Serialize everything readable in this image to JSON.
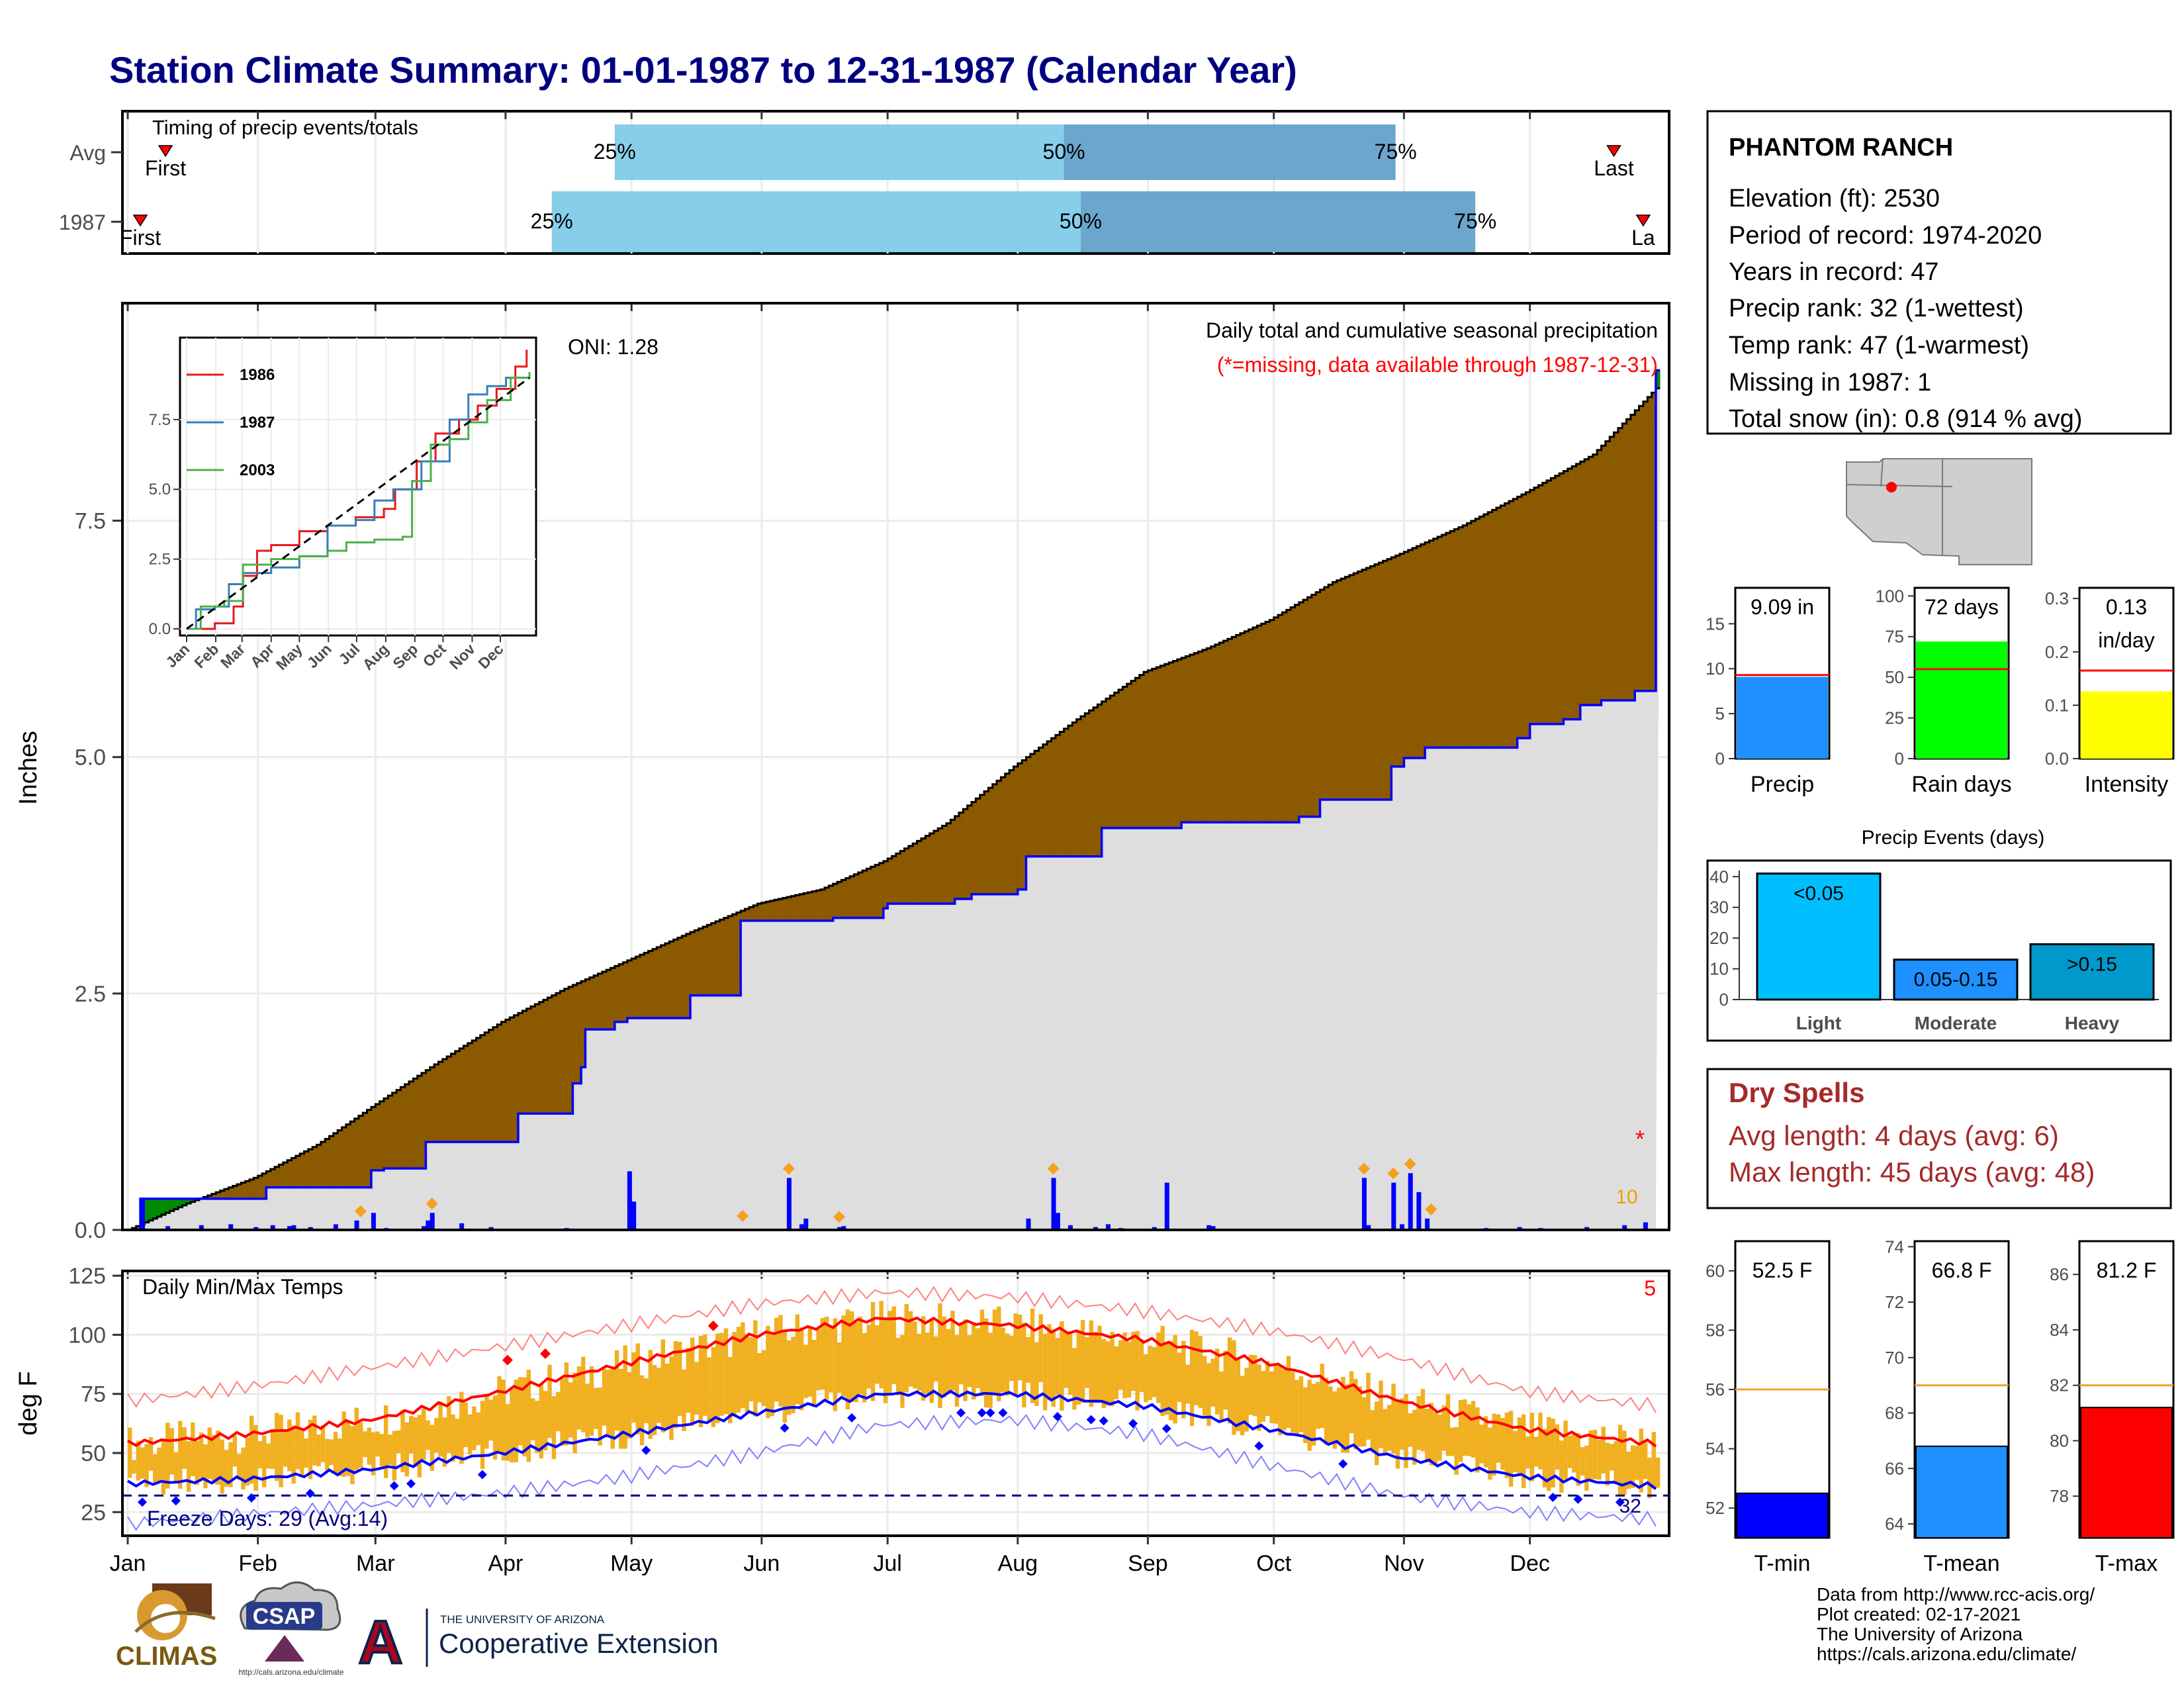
{
  "title": "Station Climate Summary: 01-01-1987 to 12-31-1987 (Calendar Year)",
  "colors": {
    "title": "#000080",
    "light_blue": "#87ceeb",
    "mid_blue": "#6ca6cd",
    "brown": "#8b5a00",
    "green": "#008b00",
    "gray_fill": "#dedede",
    "precip": "#1e90ff",
    "rain_days": "#00ff00",
    "intensity": "#ffff00",
    "tmin": "#0000ff",
    "tmean": "#1e90ff",
    "tmax": "#ff0000",
    "temp_bar": "#f0b020",
    "dry_spell": "#a52a2a"
  },
  "months": [
    "Jan",
    "Feb",
    "Mar",
    "Apr",
    "May",
    "Jun",
    "Jul",
    "Aug",
    "Sep",
    "Oct",
    "Nov",
    "Dec"
  ],
  "timing": {
    "title": "Timing of precip events/totals",
    "rows": [
      {
        "label": "Avg",
        "p25": "25%",
        "p50": "50%",
        "p75": "75%",
        "first": "First",
        "last": "Last",
        "p25_doy": 117,
        "p50_doy": 224,
        "p75_doy": 303,
        "first_doy": 10,
        "last_doy": 355
      },
      {
        "label": "1987",
        "p25": "25%",
        "p50": "50%",
        "p75": "75%",
        "first": "First",
        "last": "La",
        "p25_doy": 102,
        "p50_doy": 228,
        "p75_doy": 322,
        "first_doy": 4,
        "last_doy": 362
      }
    ]
  },
  "precip": {
    "ylabel": "Inches",
    "yticks": [
      "0.0",
      "2.5",
      "5.0",
      "7.5"
    ],
    "ylim": [
      0,
      9.8
    ],
    "oni": "ONI: 1.28",
    "note1": "Daily total and cumulative seasonal precipitation",
    "note2": "(*=missing, data available through 1987-12-31)",
    "missing_marker": "*",
    "count_marker": "10",
    "avg_cumulative": [
      [
        1,
        0
      ],
      [
        15,
        0.28
      ],
      [
        31,
        0.55
      ],
      [
        46,
        0.9
      ],
      [
        59,
        1.3
      ],
      [
        74,
        1.75
      ],
      [
        90,
        2.2
      ],
      [
        105,
        2.55
      ],
      [
        120,
        2.85
      ],
      [
        135,
        3.15
      ],
      [
        151,
        3.45
      ],
      [
        166,
        3.6
      ],
      [
        181,
        3.9
      ],
      [
        196,
        4.3
      ],
      [
        212,
        4.9
      ],
      [
        227,
        5.4
      ],
      [
        243,
        5.9
      ],
      [
        258,
        6.15
      ],
      [
        273,
        6.45
      ],
      [
        288,
        6.85
      ],
      [
        304,
        7.15
      ],
      [
        319,
        7.45
      ],
      [
        334,
        7.8
      ],
      [
        350,
        8.2
      ],
      [
        365,
        8.9
      ]
    ],
    "cumulative_1987": [
      [
        1,
        0
      ],
      [
        4,
        0.33
      ],
      [
        30,
        0.33
      ],
      [
        34,
        0.45
      ],
      [
        58,
        0.45
      ],
      [
        59,
        0.63
      ],
      [
        60,
        0.63
      ],
      [
        62,
        0.65
      ],
      [
        68,
        0.65
      ],
      [
        72,
        0.93
      ],
      [
        92,
        0.93
      ],
      [
        94,
        1.23
      ],
      [
        105,
        1.23
      ],
      [
        107,
        1.55
      ],
      [
        109,
        1.72
      ],
      [
        110,
        2.12
      ],
      [
        117,
        2.2
      ],
      [
        120,
        2.24
      ],
      [
        133,
        2.24
      ],
      [
        135,
        2.48
      ],
      [
        146,
        2.48
      ],
      [
        147,
        3.27
      ],
      [
        160,
        3.27
      ],
      [
        169,
        3.3
      ],
      [
        181,
        3.4
      ],
      [
        182,
        3.45
      ],
      [
        195,
        3.45
      ],
      [
        198,
        3.5
      ],
      [
        202,
        3.55
      ],
      [
        213,
        3.6
      ],
      [
        215,
        3.95
      ],
      [
        227,
        3.95
      ],
      [
        233,
        4.25
      ],
      [
        248,
        4.25
      ],
      [
        252,
        4.31
      ],
      [
        278,
        4.31
      ],
      [
        280,
        4.37
      ],
      [
        285,
        4.55
      ],
      [
        300,
        4.55
      ],
      [
        302,
        4.9
      ],
      [
        305,
        4.99
      ],
      [
        310,
        5.1
      ],
      [
        330,
        5.1
      ],
      [
        332,
        5.2
      ],
      [
        335,
        5.35
      ],
      [
        343,
        5.4
      ],
      [
        347,
        5.55
      ],
      [
        352,
        5.6
      ],
      [
        360,
        5.7
      ],
      [
        365,
        9.09
      ]
    ],
    "daily_bars": [
      [
        4,
        0.33
      ],
      [
        10,
        0.04
      ],
      [
        18,
        0.05
      ],
      [
        25,
        0.06
      ],
      [
        31,
        0.03
      ],
      [
        35,
        0.05
      ],
      [
        39,
        0.04
      ],
      [
        40,
        0.05
      ],
      [
        44,
        0.03
      ],
      [
        50,
        0.06
      ],
      [
        55,
        0.1
      ],
      [
        59,
        0.18
      ],
      [
        62,
        0.02
      ],
      [
        71,
        0.04
      ],
      [
        72,
        0.1
      ],
      [
        73,
        0.18
      ],
      [
        80,
        0.07
      ],
      [
        87,
        0.03
      ],
      [
        105,
        0.02
      ],
      [
        120,
        0.62
      ],
      [
        121,
        0.3
      ],
      [
        158,
        0.55
      ],
      [
        161,
        0.06
      ],
      [
        162,
        0.12
      ],
      [
        170,
        0.03
      ],
      [
        171,
        0.04
      ],
      [
        215,
        0.12
      ],
      [
        221,
        0.55
      ],
      [
        222,
        0.18
      ],
      [
        225,
        0.05
      ],
      [
        231,
        0.03
      ],
      [
        234,
        0.06
      ],
      [
        237,
        0.02
      ],
      [
        245,
        0.03
      ],
      [
        248,
        0.5
      ],
      [
        258,
        0.05
      ],
      [
        259,
        0.04
      ],
      [
        295,
        0.55
      ],
      [
        296,
        0.05
      ],
      [
        302,
        0.5
      ],
      [
        304,
        0.06
      ],
      [
        306,
        0.6
      ],
      [
        308,
        0.4
      ],
      [
        310,
        0.12
      ],
      [
        324,
        0.02
      ],
      [
        332,
        0.03
      ],
      [
        337,
        0.02
      ],
      [
        348,
        0.03
      ],
      [
        357,
        0.05
      ],
      [
        362,
        0.08
      ]
    ],
    "diamonds": [
      56,
      73,
      147,
      158,
      170,
      221,
      295,
      302,
      306,
      311
    ]
  },
  "inset": {
    "legend": [
      {
        "name": "1986",
        "color": "#e41a1c"
      },
      {
        "name": "1987",
        "color": "#377eb8"
      },
      {
        "name": "2003",
        "color": "#4daf4a"
      }
    ],
    "yticks": [
      "0.0",
      "2.5",
      "5.0",
      "7.5"
    ],
    "xticks": [
      "Jan",
      "Feb",
      "Mar",
      "Apr",
      "May",
      "Jun",
      "Jul",
      "Aug",
      "Sep",
      "Oct",
      "Nov",
      "Dec"
    ],
    "series": {
      "1986": [
        [
          0,
          0
        ],
        [
          30,
          0.2
        ],
        [
          50,
          0.8
        ],
        [
          60,
          1.9
        ],
        [
          75,
          2.8
        ],
        [
          90,
          3.0
        ],
        [
          120,
          3.5
        ],
        [
          150,
          3.7
        ],
        [
          180,
          4.0
        ],
        [
          210,
          4.3
        ],
        [
          222,
          5.0
        ],
        [
          245,
          6.0
        ],
        [
          265,
          7.0
        ],
        [
          290,
          7.5
        ],
        [
          310,
          8.0
        ],
        [
          330,
          8.6
        ],
        [
          350,
          9.4
        ],
        [
          362,
          10
        ]
      ],
      "1987": [
        [
          0,
          0
        ],
        [
          10,
          0.7
        ],
        [
          30,
          0.8
        ],
        [
          45,
          1.6
        ],
        [
          60,
          2.0
        ],
        [
          90,
          2.2
        ],
        [
          120,
          2.6
        ],
        [
          150,
          3.7
        ],
        [
          180,
          3.9
        ],
        [
          200,
          4.6
        ],
        [
          220,
          5.0
        ],
        [
          250,
          6.0
        ],
        [
          280,
          7.5
        ],
        [
          300,
          8.4
        ],
        [
          320,
          8.7
        ],
        [
          340,
          9.0
        ],
        [
          365,
          9.1
        ]
      ],
      "2003": [
        [
          0,
          0
        ],
        [
          15,
          0.8
        ],
        [
          40,
          1.0
        ],
        [
          60,
          2.3
        ],
        [
          90,
          2.5
        ],
        [
          120,
          2.6
        ],
        [
          150,
          2.8
        ],
        [
          170,
          3.1
        ],
        [
          200,
          3.2
        ],
        [
          230,
          3.3
        ],
        [
          240,
          5.3
        ],
        [
          260,
          6.6
        ],
        [
          280,
          6.8
        ],
        [
          300,
          7.4
        ],
        [
          320,
          8.2
        ],
        [
          345,
          9.0
        ],
        [
          365,
          9.2
        ]
      ]
    },
    "avg_line": [
      [
        0,
        0
      ],
      [
        365,
        9.0
      ]
    ]
  },
  "temps": {
    "ylabel": "deg F",
    "title": "Daily Min/Max Temps",
    "yticks": [
      "25",
      "50",
      "75",
      "100",
      "125"
    ],
    "ylim": [
      15,
      127
    ],
    "freeze": "Freeze Days: 29 (Avg:14)",
    "freeze_line": 32,
    "freeze_label": "32",
    "record_count": "5",
    "avg_max": [
      [
        1,
        54
      ],
      [
        30,
        58
      ],
      [
        59,
        64
      ],
      [
        90,
        76
      ],
      [
        120,
        88
      ],
      [
        151,
        100
      ],
      [
        181,
        107
      ],
      [
        212,
        104
      ],
      [
        243,
        98
      ],
      [
        273,
        88
      ],
      [
        304,
        72
      ],
      [
        334,
        60
      ],
      [
        365,
        54
      ]
    ],
    "avg_min": [
      [
        1,
        37
      ],
      [
        30,
        39
      ],
      [
        59,
        43
      ],
      [
        90,
        50
      ],
      [
        120,
        58
      ],
      [
        151,
        67
      ],
      [
        181,
        75
      ],
      [
        212,
        75
      ],
      [
        243,
        70
      ],
      [
        273,
        60
      ],
      [
        304,
        48
      ],
      [
        334,
        40
      ],
      [
        365,
        36
      ]
    ],
    "rec_max": [
      [
        1,
        72
      ],
      [
        30,
        78
      ],
      [
        59,
        86
      ],
      [
        90,
        95
      ],
      [
        120,
        104
      ],
      [
        151,
        113
      ],
      [
        181,
        118
      ],
      [
        212,
        116
      ],
      [
        243,
        110
      ],
      [
        273,
        102
      ],
      [
        304,
        90
      ],
      [
        334,
        76
      ],
      [
        365,
        70
      ]
    ],
    "rec_min": [
      [
        1,
        20
      ],
      [
        30,
        24
      ],
      [
        59,
        28
      ],
      [
        90,
        33
      ],
      [
        120,
        40
      ],
      [
        151,
        50
      ],
      [
        181,
        62
      ],
      [
        212,
        64
      ],
      [
        243,
        58
      ],
      [
        273,
        45
      ],
      [
        304,
        32
      ],
      [
        334,
        25
      ],
      [
        365,
        22
      ]
    ],
    "record_high_days": [
      91,
      100,
      140
    ],
    "record_low_days": [
      4,
      12,
      30,
      44,
      64,
      68,
      85,
      124,
      157,
      173,
      199,
      204,
      206,
      209,
      222,
      230,
      233,
      240,
      248,
      270,
      290,
      340,
      346,
      356
    ]
  },
  "station": {
    "name": "PHANTOM RANCH",
    "lines": [
      "Elevation (ft): 2530",
      "Period of record: 1974-2020",
      "Years in record: 47",
      "Precip rank: 32 (1-wettest)",
      "Temp rank: 47 (1-warmest)",
      "Missing in 1987: 1",
      "Total snow (in): 0.8 (914 % avg)"
    ]
  },
  "summary_bars": [
    {
      "label": "Precip",
      "value_text": "9.09 in",
      "value": 9.09,
      "avg": 9.3,
      "ymax": 19,
      "ticks": [
        0,
        5,
        10,
        15
      ],
      "color": "#1e90ff"
    },
    {
      "label": "Rain days",
      "value_text": "72 days",
      "value": 72,
      "avg": 55,
      "ymax": 105,
      "ticks": [
        0,
        25,
        50,
        75,
        100
      ],
      "color": "#00ff00"
    },
    {
      "label": "Intensity",
      "value_text": "0.13",
      "value_text2": "in/day",
      "value": 0.126,
      "avg": 0.165,
      "ymax": 0.32,
      "ticks": [
        "0.0",
        "0.1",
        "0.2",
        "0.3"
      ],
      "color": "#ffff00"
    }
  ],
  "events": {
    "title": "Precip Events (days)",
    "yticks": [
      0,
      10,
      20,
      30,
      40
    ],
    "bars": [
      {
        "category": "Light",
        "label": "<0.05",
        "value": 41,
        "color": "#00bfff"
      },
      {
        "category": "Moderate",
        "label": "0.05-0.15",
        "value": 13,
        "color": "#1e90ff"
      },
      {
        "category": "Heavy",
        "label": ">0.15",
        "value": 18,
        "color": "#0099cc"
      }
    ]
  },
  "dry_spells": {
    "title": "Dry Spells",
    "avg": "Avg length: 4 days (avg: 6)",
    "max": "Max length: 45 days (avg: 48)"
  },
  "temp_bars": [
    {
      "label": "T-min",
      "value_text": "52.5 F",
      "value": 52.5,
      "avg": 56,
      "range": [
        51,
        61
      ],
      "ticks": [
        52,
        54,
        56,
        58,
        60
      ],
      "color": "#0000ff"
    },
    {
      "label": "T-mean",
      "value_text": "66.8 F",
      "value": 66.8,
      "avg": 69,
      "range": [
        63.5,
        74.2
      ],
      "ticks": [
        64,
        66,
        68,
        70,
        72,
        74
      ],
      "color": "#1e90ff"
    },
    {
      "label": "T-max",
      "value_text": "81.2 F",
      "value": 81.2,
      "avg": 82,
      "range": [
        76.5,
        87.2
      ],
      "ticks": [
        78,
        80,
        82,
        84,
        86
      ],
      "color": "#ff0000"
    }
  ],
  "footer": {
    "lines": [
      "Data from http://www.rcc-acis.org/",
      "Plot created: 02-17-2021",
      "The University of Arizona",
      "https://cals.arizona.edu/climate/"
    ],
    "logo_climas": "CLIMAS",
    "logo_csap": "CSAP",
    "logo_csap_url": "http://cals.arizona.edu/climate",
    "logo_ua_small": "THE UNIVERSITY OF ARIZONA",
    "logo_ua_big": "Cooperative Extension",
    "logo_ua_mark": "A"
  }
}
